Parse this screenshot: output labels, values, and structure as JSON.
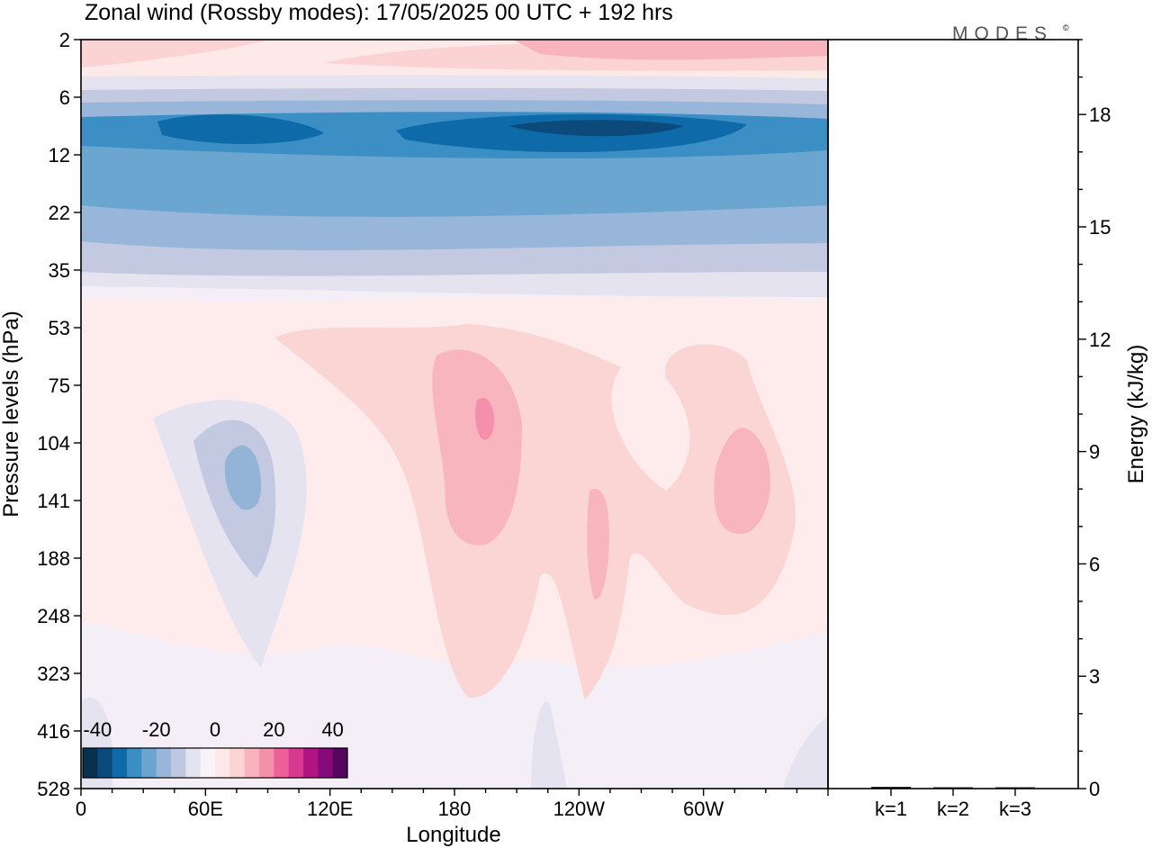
{
  "chart_data": {
    "type": "heatmap",
    "title": "Zonal wind (Rossby modes):  17/05/2025  00 UTC  + 192 hrs",
    "brand": "MODES",
    "brand_mark": "©",
    "xlabel": "Longitude",
    "ylabel": "Pressure levels (hPa)",
    "x_ticks": [
      "0",
      "60E",
      "120E",
      "180",
      "120W",
      "60W"
    ],
    "y_ticks": [
      "2",
      "6",
      "12",
      "22",
      "35",
      "53",
      "75",
      "104",
      "141",
      "188",
      "248",
      "323",
      "416",
      "528"
    ],
    "colorbar": {
      "labels": [
        "-40",
        "-20",
        "0",
        "20",
        "40"
      ],
      "colors": [
        "#08304f",
        "#0b4a7a",
        "#0e6aa8",
        "#3b8fc4",
        "#6aa6cf",
        "#98b6d9",
        "#c0c8e0",
        "#e4e4f0",
        "#f7f3f8",
        "#fde9e8",
        "#fbd3d3",
        "#f8b4bd",
        "#f590ab",
        "#ee609c",
        "#d93890",
        "#b31484",
        "#870a79",
        "#55065f"
      ],
      "range": [
        -45,
        45
      ]
    },
    "features": [
      {
        "label": "strong easterly jet band",
        "lon": [
          0,
          360
        ],
        "pressure_hPa": [
          5,
          30
        ],
        "min_u": -40
      },
      {
        "label": "upper westerlies",
        "lon": [
          0,
          360
        ],
        "pressure_hPa": [
          2,
          4
        ],
        "max_u": 20
      },
      {
        "label": "easterly anomaly",
        "lon": [
          40,
          100
        ],
        "pressure_hPa": [
          90,
          300
        ],
        "min_u": -20
      },
      {
        "label": "westerly maximum",
        "lon": [
          170,
          210
        ],
        "pressure_hPa": [
          60,
          200
        ],
        "max_u": 20
      },
      {
        "label": "westerly cell",
        "lon": [
          290,
          330
        ],
        "pressure_hPa": [
          100,
          180
        ],
        "max_u": 15
      }
    ],
    "energy_bars": {
      "ylabel": "Energy (kJ/kg)",
      "y_ticks": [
        "0",
        "3",
        "6",
        "9",
        "12",
        "15",
        "18"
      ],
      "ylim": [
        0,
        20
      ],
      "categories": [
        "k=1",
        "k=2",
        "k=3"
      ],
      "values": [
        0.02,
        0.01,
        0.01
      ]
    }
  }
}
